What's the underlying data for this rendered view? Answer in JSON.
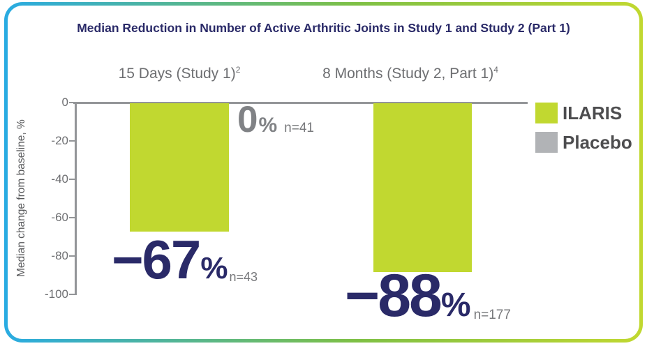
{
  "title": "Median Reduction in Number of Active Arthritic Joints in Study 1 and Study 2 (Part 1)",
  "y_axis": {
    "label": "Median change from baseline, %",
    "ticks": [
      "0",
      "-20",
      "-40",
      "-60",
      "-80",
      "-100"
    ]
  },
  "groups": [
    {
      "header": "15 Days (Study 1)",
      "header_sup": "2",
      "bars": [
        {
          "series": "ILARIS",
          "label": "−67",
          "pct": "%",
          "n": "n=43"
        },
        {
          "series": "Placebo",
          "label": "0",
          "pct": "%",
          "n": "n=41"
        }
      ]
    },
    {
      "header": "8 Months (Study 2, Part 1)",
      "header_sup": "4",
      "bars": [
        {
          "series": "ILARIS",
          "label": "−88",
          "pct": "%",
          "n": "n=177"
        }
      ]
    }
  ],
  "legend": [
    {
      "label": "ILARIS",
      "color": "#C1D830"
    },
    {
      "label": "Placebo",
      "color": "#B1B3B6"
    }
  ],
  "colors": {
    "navy": "#2A2A68",
    "green": "#C1D830",
    "placebo_gray": "#B1B3B6",
    "axis_gray": "#939598",
    "text_gray": "#6D6E71",
    "value_gray": "#808285",
    "legend_text": "#4D4D4F",
    "border_gradient_start": "#29ABE2",
    "border_gradient_end": "#C1D830"
  },
  "chart_data": {
    "type": "bar",
    "title": "Median Reduction in Number of Active Arthritic Joints in Study 1 and Study 2 (Part 1)",
    "categories": [
      "15 Days (Study 1)²",
      "8 Months (Study 2, Part 1)⁴"
    ],
    "series": [
      {
        "name": "ILARIS",
        "values": [
          -67,
          -88
        ],
        "n": [
          43,
          177
        ],
        "color": "#C1D830"
      },
      {
        "name": "Placebo",
        "values": [
          0,
          null
        ],
        "n": [
          41,
          null
        ],
        "color": "#B1B3B6"
      }
    ],
    "xlabel": "",
    "ylabel": "Median change from baseline, %",
    "ylim": [
      -100,
      0
    ],
    "yticks": [
      0,
      -20,
      -40,
      -60,
      -80,
      -100
    ],
    "grid": false,
    "legend_position": "right",
    "bar_direction": "down-from-zero"
  }
}
